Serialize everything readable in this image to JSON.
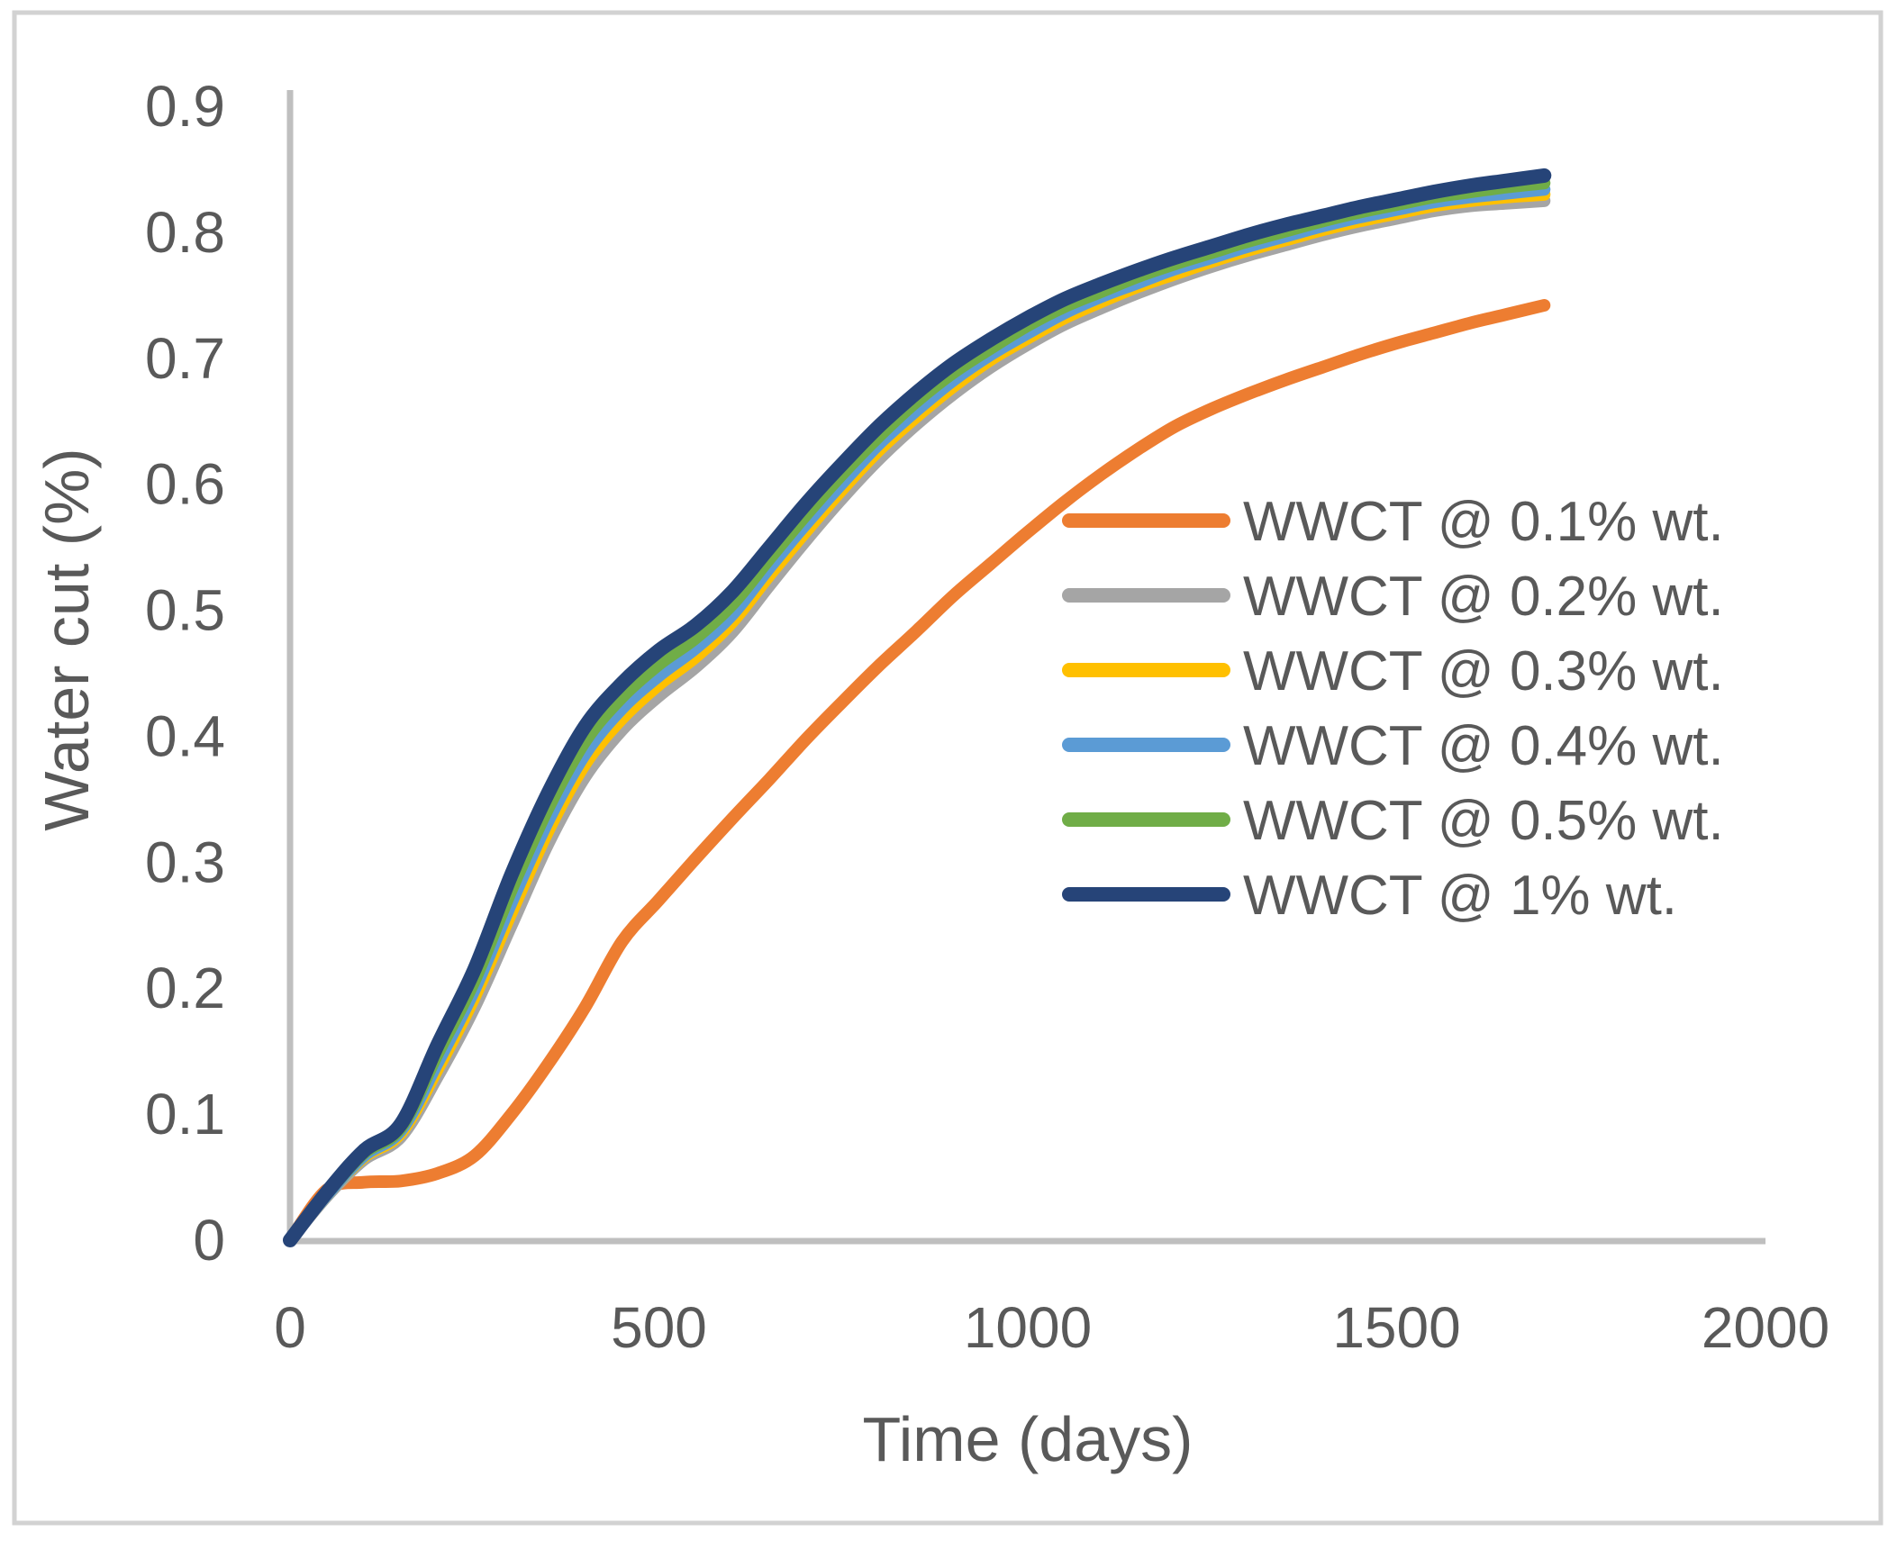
{
  "figure": {
    "background_color": "#FFFFFF",
    "border_color": "#D2D2D2"
  },
  "chart_data": {
    "type": "line",
    "title": "",
    "xlabel": "Time (days)",
    "ylabel": "Water cut (%)",
    "xlim": [
      0,
      2000
    ],
    "ylim": [
      0,
      0.9
    ],
    "grid": false,
    "legend_position": "center-right",
    "axis_color": "#BFBFBF",
    "text_color": "#595959",
    "x_tick_values": [
      0,
      500,
      1000,
      1500,
      2000
    ],
    "x_tick_labels": [
      "0",
      "500",
      "1000",
      "1500",
      "2000"
    ],
    "y_tick_values": [
      0,
      0.1,
      0.2,
      0.3,
      0.4,
      0.5,
      0.6,
      0.7,
      0.8,
      0.9
    ],
    "y_tick_labels": [
      "0",
      "0.1",
      "0.2",
      "0.3",
      "0.4",
      "0.5",
      "0.6",
      "0.7",
      "0.8",
      "0.9"
    ],
    "x": [
      0,
      50,
      100,
      150,
      200,
      250,
      300,
      350,
      400,
      450,
      500,
      550,
      600,
      650,
      700,
      750,
      800,
      850,
      900,
      950,
      1000,
      1050,
      1100,
      1150,
      1200,
      1250,
      1300,
      1350,
      1400,
      1450,
      1500,
      1550,
      1600,
      1650,
      1700
    ],
    "series": [
      {
        "id": "wwct-0-1-pct",
        "name": "WWCT @ 0.1% wt.",
        "color": "#ED7D31",
        "line_width": 14,
        "values": [
          0,
          0.04,
          0.046,
          0.047,
          0.053,
          0.067,
          0.1,
          0.14,
          0.185,
          0.237,
          0.27,
          0.303,
          0.335,
          0.366,
          0.398,
          0.428,
          0.457,
          0.484,
          0.512,
          0.537,
          0.562,
          0.586,
          0.608,
          0.628,
          0.646,
          0.66,
          0.672,
          0.683,
          0.693,
          0.703,
          0.712,
          0.72,
          0.728,
          0.735,
          0.742
        ]
      },
      {
        "id": "wwct-0-2-pct",
        "name": "WWCT @ 0.2% wt.",
        "color": "#A5A5A5",
        "line_width": 14,
        "values": [
          0,
          0.035,
          0.064,
          0.082,
          0.13,
          0.185,
          0.25,
          0.315,
          0.368,
          0.405,
          0.432,
          0.455,
          0.483,
          0.52,
          0.556,
          0.59,
          0.621,
          0.648,
          0.672,
          0.693,
          0.711,
          0.727,
          0.74,
          0.752,
          0.763,
          0.773,
          0.782,
          0.79,
          0.798,
          0.805,
          0.811,
          0.817,
          0.821,
          0.823,
          0.825
        ]
      },
      {
        "id": "wwct-0-3-pct",
        "name": "WWCT @ 0.3% wt.",
        "color": "#FFC000",
        "line_width": 14,
        "values": [
          0,
          0.036,
          0.066,
          0.085,
          0.136,
          0.193,
          0.26,
          0.325,
          0.378,
          0.414,
          0.441,
          0.463,
          0.491,
          0.528,
          0.563,
          0.597,
          0.628,
          0.654,
          0.678,
          0.699,
          0.716,
          0.732,
          0.745,
          0.757,
          0.767,
          0.777,
          0.786,
          0.794,
          0.802,
          0.809,
          0.815,
          0.821,
          0.825,
          0.828,
          0.83
        ]
      },
      {
        "id": "wwct-0-4-pct",
        "name": "WWCT @ 0.4% wt.",
        "color": "#5B9BD5",
        "line_width": 14,
        "values": [
          0,
          0.036,
          0.067,
          0.087,
          0.141,
          0.199,
          0.268,
          0.333,
          0.386,
          0.422,
          0.448,
          0.47,
          0.497,
          0.534,
          0.569,
          0.602,
          0.633,
          0.659,
          0.683,
          0.703,
          0.72,
          0.736,
          0.749,
          0.76,
          0.771,
          0.78,
          0.789,
          0.797,
          0.805,
          0.812,
          0.818,
          0.824,
          0.828,
          0.831,
          0.834
        ]
      },
      {
        "id": "wwct-0-5-pct",
        "name": "WWCT @ 0.5% wt.",
        "color": "#70AD47",
        "line_width": 14,
        "values": [
          0,
          0.037,
          0.069,
          0.089,
          0.148,
          0.206,
          0.278,
          0.343,
          0.396,
          0.431,
          0.457,
          0.478,
          0.505,
          0.541,
          0.576,
          0.609,
          0.639,
          0.666,
          0.689,
          0.708,
          0.726,
          0.741,
          0.753,
          0.765,
          0.775,
          0.784,
          0.793,
          0.801,
          0.809,
          0.816,
          0.822,
          0.828,
          0.832,
          0.836,
          0.839
        ]
      },
      {
        "id": "wwct-1-pct",
        "name": "WWCT @ 1% wt.",
        "color": "#264478",
        "line_width": 16,
        "values": [
          0,
          0.038,
          0.071,
          0.092,
          0.155,
          0.215,
          0.29,
          0.355,
          0.408,
          0.442,
          0.468,
          0.488,
          0.515,
          0.55,
          0.585,
          0.617,
          0.647,
          0.673,
          0.696,
          0.715,
          0.732,
          0.747,
          0.759,
          0.77,
          0.78,
          0.789,
          0.798,
          0.806,
          0.813,
          0.82,
          0.826,
          0.832,
          0.837,
          0.841,
          0.845
        ]
      }
    ]
  }
}
